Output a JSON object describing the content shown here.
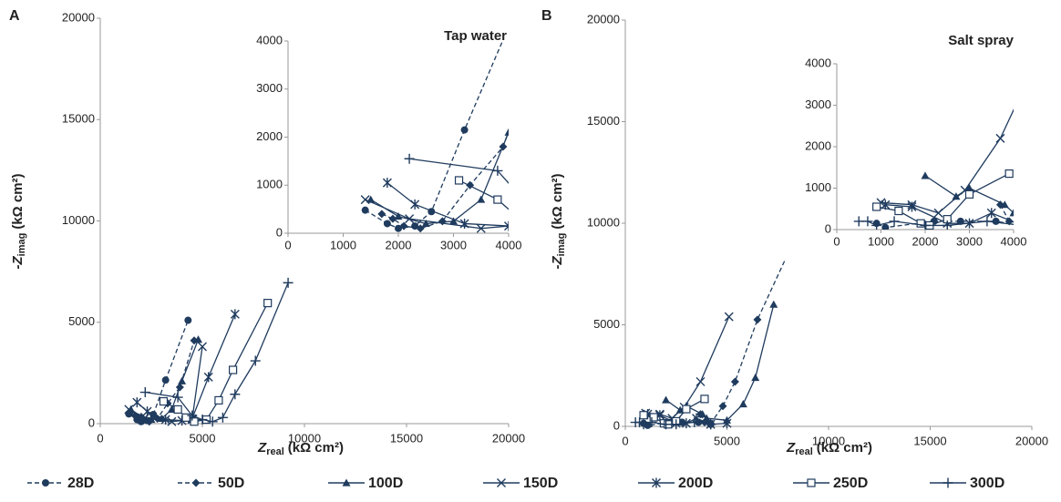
{
  "chart_data": [
    {
      "type": "line",
      "panel": "A",
      "annotation": "Tap water",
      "xlabel": {
        "symbol": "Z",
        "subscript": "real",
        "unit": "(kΩ cm²)"
      },
      "ylabel": {
        "symbol": "-Z",
        "subscript": "imag",
        "unit": "(kΩ cm²)"
      },
      "xlim": [
        0,
        20000
      ],
      "ylim": [
        0,
        20000
      ],
      "xticks": [
        0,
        5000,
        10000,
        15000,
        20000
      ],
      "yticks": [
        0,
        5000,
        10000,
        15000,
        20000
      ],
      "inset": {
        "xlim": [
          0,
          4000
        ],
        "ylim": [
          0,
          4000
        ],
        "xticks": [
          0,
          1000,
          2000,
          3000,
          4000
        ],
        "yticks": [
          0,
          1000,
          2000,
          3000,
          4000
        ]
      },
      "series": [
        {
          "name": "28D",
          "color": "#1f3b5e",
          "marker": "circle",
          "dash": true,
          "x": [
            1400,
            1800,
            2000,
            2300,
            2600,
            3200,
            4300
          ],
          "y": [
            480,
            200,
            100,
            150,
            450,
            2150,
            5100
          ]
        },
        {
          "name": "50D",
          "color": "#1f3b5e",
          "marker": "diamond",
          "dash": true,
          "x": [
            1700,
            1900,
            2100,
            2400,
            2800,
            3300,
            3900,
            4600
          ],
          "y": [
            400,
            300,
            150,
            100,
            250,
            1000,
            1800,
            4100
          ]
        },
        {
          "name": "100D",
          "color": "#1f3b5e",
          "marker": "triangle",
          "dash": false,
          "x": [
            1500,
            2000,
            2500,
            3000,
            3500,
            4000,
            4800
          ],
          "y": [
            700,
            350,
            200,
            250,
            700,
            2100,
            4150
          ]
        },
        {
          "name": "150D",
          "color": "#1f3b5e",
          "marker": "x",
          "dash": false,
          "x": [
            1400,
            2200,
            3500,
            4500,
            5000
          ],
          "y": [
            700,
            300,
            100,
            200,
            3800
          ]
        },
        {
          "name": "200D",
          "color": "#1f3b5e",
          "marker": "asterisk",
          "dash": false,
          "x": [
            1800,
            2300,
            3200,
            4000,
            4500,
            5300,
            6600
          ],
          "y": [
            1050,
            600,
            200,
            150,
            250,
            2300,
            5400
          ]
        },
        {
          "name": "250D",
          "color": "#1f3b5e",
          "marker": "square",
          "dash": false,
          "x": [
            3100,
            3800,
            4200,
            4600,
            5200,
            5800,
            6500,
            8200
          ],
          "y": [
            1100,
            700,
            300,
            100,
            200,
            1150,
            2650,
            5950
          ]
        },
        {
          "name": "300D",
          "color": "#1f3b5e",
          "marker": "plus",
          "dash": false,
          "x": [
            2200,
            3800,
            4500,
            5000,
            5500,
            6000,
            6600,
            7600,
            9200
          ],
          "y": [
            1550,
            1300,
            400,
            200,
            100,
            300,
            1450,
            3100,
            6950
          ]
        }
      ]
    },
    {
      "type": "line",
      "panel": "B",
      "annotation": "Salt spray",
      "xlabel": {
        "symbol": "Z",
        "subscript": "real",
        "unit": "(kΩ cm²)"
      },
      "ylabel": {
        "symbol": "-Z",
        "subscript": "imag",
        "unit": "(kΩ cm²)"
      },
      "xlim": [
        0,
        20000
      ],
      "ylim": [
        0,
        20000
      ],
      "xticks": [
        0,
        5000,
        10000,
        15000,
        20000
      ],
      "yticks": [
        0,
        5000,
        10000,
        15000,
        20000
      ],
      "inset": {
        "xlim": [
          0,
          4000
        ],
        "ylim": [
          0,
          4000
        ],
        "xticks": [
          0,
          1000,
          2000,
          3000,
          4000
        ],
        "yticks": [
          0,
          1000,
          2000,
          3000,
          4000
        ]
      },
      "series": [
        {
          "color": "#1f3b5e",
          "marker": "circle",
          "dash": true,
          "x": [
            900,
            1100,
            2200,
            2800,
            3600,
            4200
          ],
          "y": [
            150,
            50,
            200,
            200,
            200,
            100
          ]
        },
        {
          "color": "#1f3b5e",
          "marker": "diamond",
          "dash": true,
          "x": [
            3700,
            3900,
            4200,
            4800,
            5400,
            6500,
            9800
          ],
          "y": [
            600,
            200,
            150,
            1000,
            2200,
            5250,
            12400
          ]
        },
        {
          "color": "#1f3b5e",
          "marker": "triangle",
          "dash": false,
          "x": [
            2000,
            2700,
            3000,
            3800,
            4000,
            5000,
            5800,
            6400,
            7300
          ],
          "y": [
            1300,
            800,
            1000,
            600,
            400,
            300,
            1100,
            2400,
            6000
          ]
        },
        {
          "color": "#1f3b5e",
          "marker": "x",
          "dash": false,
          "x": [
            1000,
            1700,
            2300,
            2900,
            3700,
            5100
          ],
          "y": [
            650,
            600,
            400,
            950,
            2200,
            5400
          ]
        },
        {
          "color": "#1f3b5e",
          "marker": "asterisk",
          "dash": false,
          "x": [
            1100,
            1700,
            2500,
            3000,
            3500,
            4200,
            5000
          ],
          "y": [
            600,
            550,
            150,
            150,
            400,
            100,
            150
          ]
        },
        {
          "color": "#1f3b5e",
          "marker": "square",
          "dash": false,
          "x": [
            900,
            1400,
            1900,
            2100,
            2500,
            3000,
            3900
          ],
          "y": [
            550,
            450,
            150,
            100,
            250,
            850,
            1350
          ]
        },
        {
          "color": "#1f3b5e",
          "marker": "plus",
          "dash": false,
          "x": [
            500,
            700,
            900,
            1300,
            2000,
            2500,
            3400,
            4200
          ],
          "y": [
            200,
            200,
            100,
            200,
            100,
            100,
            200,
            100
          ]
        }
      ]
    }
  ]
}
